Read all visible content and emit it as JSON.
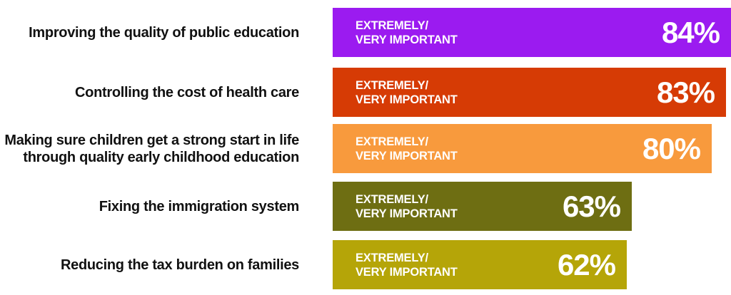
{
  "chart_data": {
    "type": "bar",
    "orientation": "horizontal",
    "categories": [
      "Improving the quality of public education",
      "Controlling the cost of health care",
      "Making sure children get a strong start in life\nthrough quality early childhood education",
      "Fixing the immigration system",
      "Reducing the tax burden on families"
    ],
    "values": [
      84,
      83,
      80,
      63,
      62
    ],
    "value_labels": [
      "84%",
      "83%",
      "80%",
      "63%",
      "62%"
    ],
    "bar_tag_line1": "EXTREMELY/",
    "bar_tag_line2": "VERY IMPORTANT",
    "colors": [
      "#9b1bf0",
      "#d63b05",
      "#f89a3d",
      "#6e6e12",
      "#b5a508"
    ],
    "title": "",
    "xlabel": "",
    "ylabel": "",
    "xlim": [
      0,
      84
    ],
    "grid": false,
    "legend": "none"
  }
}
